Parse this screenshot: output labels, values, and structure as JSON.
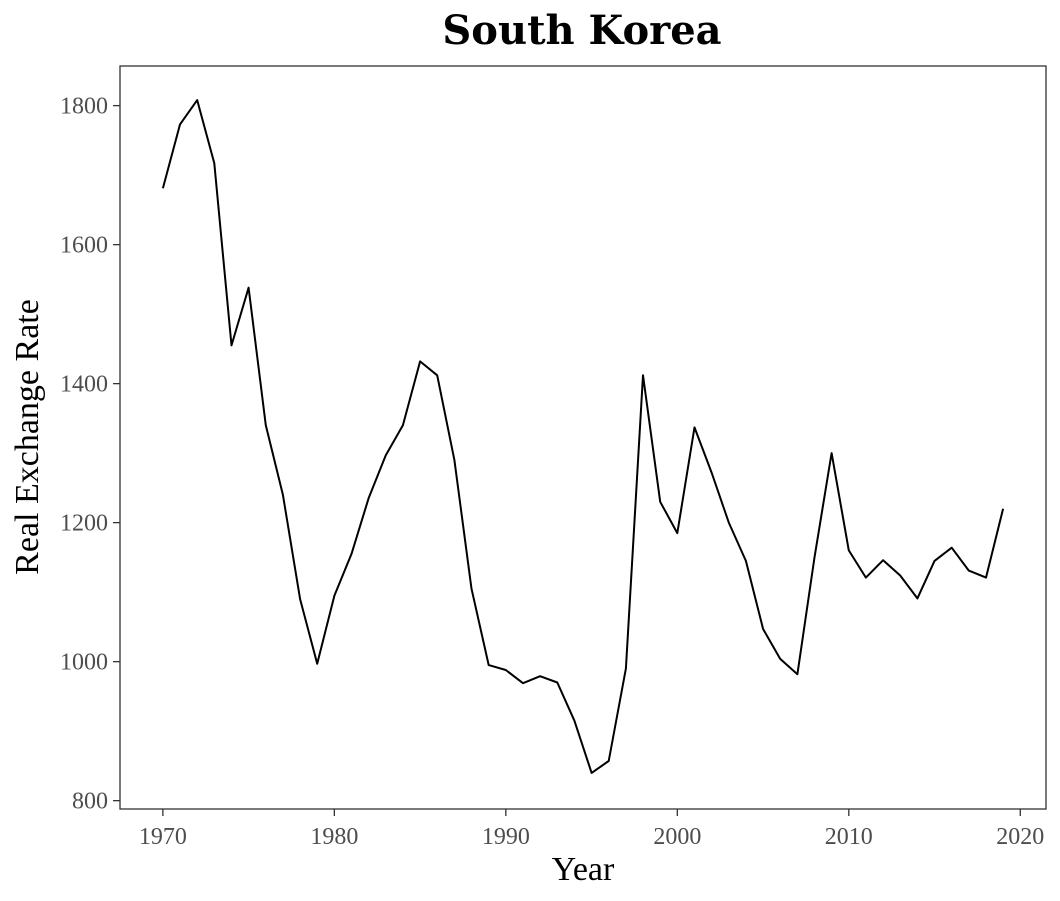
{
  "chart_data": {
    "type": "line",
    "title": "South Korea",
    "xlabel": "Year",
    "ylabel": "Real Exchange Rate",
    "xlim": [
      1967.5,
      2021.5
    ],
    "ylim": [
      788,
      1857
    ],
    "x_ticks": [
      1970,
      1980,
      1990,
      2000,
      2010,
      2020
    ],
    "y_ticks": [
      800,
      1000,
      1200,
      1400,
      1600,
      1800
    ],
    "grid": false,
    "legend": "none",
    "line_color": "#000000",
    "series": [
      {
        "x": [
          1970,
          1971,
          1972,
          1973,
          1974,
          1975,
          1976,
          1977,
          1978,
          1979,
          1980,
          1981,
          1982,
          1983,
          1984,
          1985,
          1986,
          1987,
          1988,
          1989,
          1990,
          1991,
          1992,
          1993,
          1994,
          1995,
          1996,
          1997,
          1998,
          1999,
          2000,
          2001,
          2002,
          2003,
          2004,
          2005,
          2006,
          2007,
          2008,
          2009,
          2010,
          2011,
          2012,
          2013,
          2014,
          2015,
          2016,
          2017,
          2018,
          2019
        ],
        "values": [
          1681,
          1773,
          1808,
          1717,
          1455,
          1538,
          1340,
          1240,
          1090,
          997,
          1095,
          1155,
          1235,
          1297,
          1340,
          1432,
          1412,
          1290,
          1105,
          995,
          988,
          969,
          979,
          970,
          915,
          840,
          857,
          990,
          1412,
          1230,
          1185,
          1337,
          1272,
          1200,
          1145,
          1047,
          1004,
          982,
          1150,
          1300,
          1160,
          1121,
          1146,
          1124,
          1091,
          1145,
          1164,
          1131,
          1121,
          1220
        ]
      }
    ]
  }
}
